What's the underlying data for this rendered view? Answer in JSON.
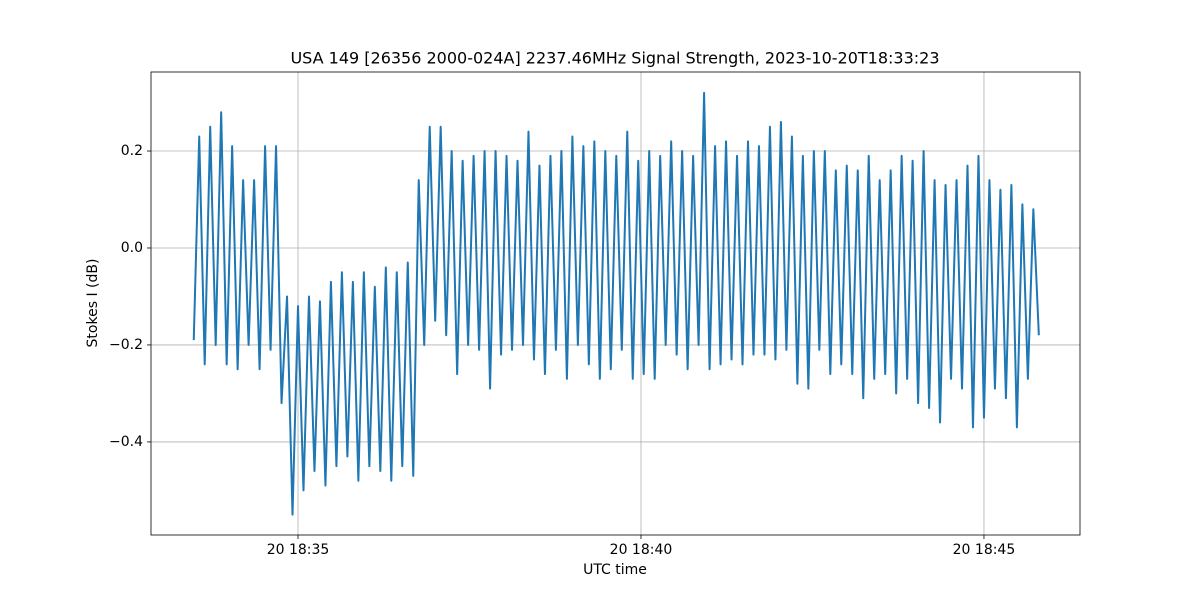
{
  "chart_data": {
    "type": "line",
    "title": "USA 149 [26356 2000-024A] 2237.46MHz Signal Strength, 2023-10-20T18:33:23",
    "x_label": "UTC time",
    "y_label": "Stokes I (dB)",
    "color": "#1f77b4",
    "grid": true,
    "xlim": [
      32.857,
      46.4
    ],
    "xticks": [
      {
        "value": 35,
        "label": "20 18:35"
      },
      {
        "value": 40,
        "label": "20 18:40"
      },
      {
        "value": 45,
        "label": "20 18:45"
      }
    ],
    "ylim": [
      -0.592,
      0.363
    ],
    "yticks": [
      {
        "value": -0.4,
        "label": "−0.4"
      },
      {
        "value": -0.2,
        "label": "−0.2"
      },
      {
        "value": 0,
        "label": "0.0"
      },
      {
        "value": 0.2,
        "label": "0.2"
      }
    ],
    "x": [
      33.48,
      33.56,
      33.64,
      33.72,
      33.8,
      33.88,
      33.96,
      34.04,
      34.12,
      34.2,
      34.28,
      34.36,
      34.44,
      34.52,
      34.6,
      34.68,
      34.76,
      34.84,
      34.92,
      35.0,
      35.08,
      35.16,
      35.24,
      35.32,
      35.4,
      35.48,
      35.56,
      35.64,
      35.72,
      35.8,
      35.88,
      35.96,
      36.04,
      36.12,
      36.2,
      36.28,
      36.36,
      36.44,
      36.52,
      36.6,
      36.68,
      36.76,
      36.84,
      36.92,
      37.0,
      37.08,
      37.16,
      37.24,
      37.32,
      37.4,
      37.48,
      37.56,
      37.64,
      37.72,
      37.8,
      37.88,
      37.96,
      38.04,
      38.12,
      38.2,
      38.28,
      38.36,
      38.44,
      38.52,
      38.6,
      38.68,
      38.76,
      38.84,
      38.92,
      39.0,
      39.08,
      39.16,
      39.24,
      39.32,
      39.4,
      39.48,
      39.56,
      39.64,
      39.72,
      39.8,
      39.88,
      39.96,
      40.04,
      40.12,
      40.2,
      40.28,
      40.36,
      40.44,
      40.52,
      40.6,
      40.68,
      40.76,
      40.84,
      40.92,
      41.0,
      41.08,
      41.16,
      41.24,
      41.32,
      41.4,
      41.48,
      41.56,
      41.64,
      41.72,
      41.8,
      41.88,
      41.96,
      42.04,
      42.12,
      42.2,
      42.28,
      42.36,
      42.44,
      42.52,
      42.6,
      42.68,
      42.76,
      42.84,
      42.92,
      43.0,
      43.08,
      43.16,
      43.24,
      43.32,
      43.4,
      43.48,
      43.56,
      43.64,
      43.72,
      43.8,
      43.88,
      43.96,
      44.04,
      44.12,
      44.2,
      44.28,
      44.36,
      44.44,
      44.52,
      44.6,
      44.68,
      44.76,
      44.84,
      44.92,
      45.0,
      45.08,
      45.16,
      45.24,
      45.32,
      45.4,
      45.48,
      45.56,
      45.64,
      45.72,
      45.8
    ],
    "values": [
      -0.19,
      0.23,
      -0.24,
      0.25,
      -0.2,
      0.28,
      -0.24,
      0.21,
      -0.25,
      0.14,
      -0.2,
      0.14,
      -0.25,
      0.21,
      -0.21,
      0.21,
      -0.32,
      -0.1,
      -0.55,
      -0.12,
      -0.5,
      -0.1,
      -0.46,
      -0.11,
      -0.49,
      -0.07,
      -0.45,
      -0.05,
      -0.43,
      -0.07,
      -0.48,
      -0.05,
      -0.45,
      -0.08,
      -0.46,
      -0.04,
      -0.48,
      -0.05,
      -0.45,
      -0.03,
      -0.47,
      0.14,
      -0.2,
      0.25,
      -0.15,
      0.25,
      -0.18,
      0.2,
      -0.26,
      0.18,
      -0.2,
      0.19,
      -0.21,
      0.2,
      -0.29,
      0.2,
      -0.22,
      0.19,
      -0.21,
      0.18,
      -0.2,
      0.24,
      -0.23,
      0.17,
      -0.26,
      0.19,
      -0.21,
      0.2,
      -0.27,
      0.23,
      -0.2,
      0.21,
      -0.24,
      0.22,
      -0.27,
      0.2,
      -0.25,
      0.19,
      -0.21,
      0.24,
      -0.27,
      0.18,
      -0.26,
      0.2,
      -0.27,
      0.19,
      -0.2,
      0.22,
      -0.22,
      0.2,
      -0.25,
      0.19,
      -0.2,
      0.32,
      -0.25,
      0.21,
      -0.24,
      0.22,
      -0.23,
      0.19,
      -0.24,
      0.22,
      -0.22,
      0.21,
      -0.22,
      0.25,
      -0.23,
      0.26,
      -0.21,
      0.23,
      -0.28,
      0.19,
      -0.29,
      0.2,
      -0.21,
      0.2,
      -0.26,
      0.16,
      -0.24,
      0.17,
      -0.26,
      0.16,
      -0.31,
      0.19,
      -0.27,
      0.14,
      -0.26,
      0.16,
      -0.3,
      0.19,
      -0.27,
      0.18,
      -0.32,
      0.2,
      -0.33,
      0.14,
      -0.36,
      0.13,
      -0.27,
      0.14,
      -0.29,
      0.17,
      -0.37,
      0.19,
      -0.35,
      0.14,
      -0.29,
      0.12,
      -0.31,
      0.13,
      -0.37,
      0.09,
      -0.27,
      0.08,
      -0.18
    ]
  }
}
